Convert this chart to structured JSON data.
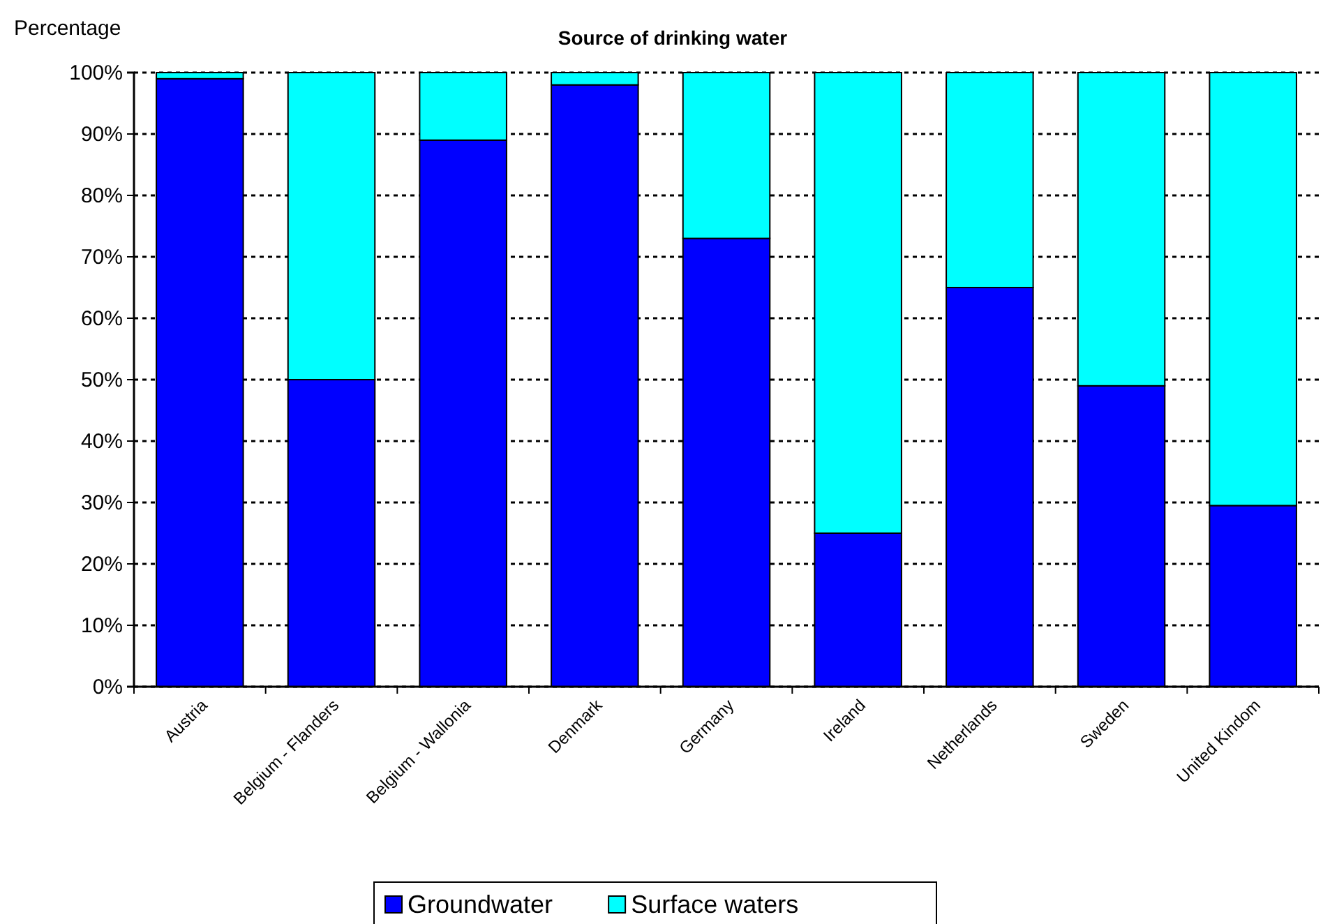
{
  "chart_data": {
    "type": "bar",
    "title": "Source of drinking water",
    "ylabel": "Percentage",
    "stacked": true,
    "categories": [
      "Austria",
      "Belgium - Flanders",
      "Belgium - Wallonia",
      "Denmark",
      "Germany",
      "Ireland",
      "Netherlands",
      "Sweden",
      "United Kindom"
    ],
    "series": [
      {
        "name": "Groundwater",
        "color": "#0000ff",
        "values": [
          99,
          50,
          89,
          98,
          73,
          25,
          65,
          49,
          29.5
        ]
      },
      {
        "name": "Surface waters",
        "color": "#00ffff",
        "values": [
          1,
          50,
          11,
          2,
          27,
          75,
          35,
          51,
          70.5
        ]
      }
    ],
    "ylim": [
      0,
      100
    ],
    "yticks": [
      {
        "value": 0,
        "label": "0%"
      },
      {
        "value": 10,
        "label": "10%"
      },
      {
        "value": 20,
        "label": "20%"
      },
      {
        "value": 30,
        "label": "30%"
      },
      {
        "value": 40,
        "label": "40%"
      },
      {
        "value": 50,
        "label": "50%"
      },
      {
        "value": 60,
        "label": "60%"
      },
      {
        "value": 70,
        "label": "70%"
      },
      {
        "value": 80,
        "label": "80%"
      },
      {
        "value": 90,
        "label": "90%"
      },
      {
        "value": 100,
        "label": "100%"
      }
    ],
    "grid": "y",
    "legend": "bottom"
  }
}
